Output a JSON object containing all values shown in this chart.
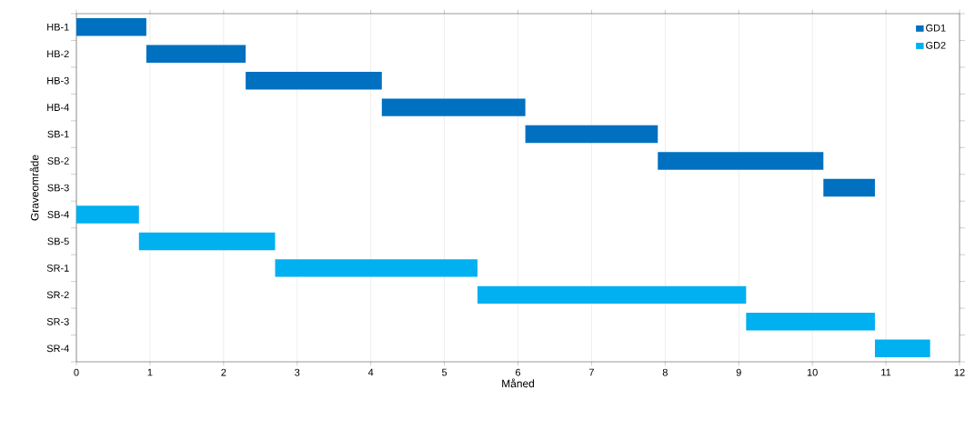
{
  "chart_data": {
    "type": "bar",
    "orientation": "horizontal",
    "xlabel": "Måned",
    "ylabel": "Graveområde",
    "categories": [
      "HB-1",
      "HB-2",
      "HB-3",
      "HB-4",
      "SB-1",
      "SB-2",
      "SB-3",
      "SB-4",
      "SB-5",
      "SR-1",
      "SR-2",
      "SR-3",
      "SR-4"
    ],
    "series": [
      {
        "name": "GD1",
        "color": "#0070c0",
        "base": [
          0,
          0.95,
          2.3,
          4.15,
          6.1,
          7.9,
          10.15,
          null,
          null,
          null,
          null,
          null,
          null
        ],
        "values": [
          0.95,
          1.35,
          1.85,
          1.95,
          1.8,
          2.25,
          0.7,
          null,
          null,
          null,
          null,
          null,
          null
        ]
      },
      {
        "name": "GD2",
        "color": "#00b0f0",
        "base": [
          null,
          null,
          null,
          null,
          null,
          null,
          null,
          0,
          0.85,
          2.7,
          5.45,
          9.1,
          10.85
        ],
        "values": [
          null,
          null,
          null,
          null,
          null,
          null,
          null,
          0.85,
          1.85,
          2.75,
          3.65,
          1.75,
          0.75
        ]
      }
    ],
    "xlim": [
      0,
      12
    ],
    "xticks": [
      0,
      1,
      2,
      3,
      4,
      5,
      6,
      7,
      8,
      9,
      10,
      11,
      12
    ],
    "grid": "x",
    "legend": "top right"
  }
}
